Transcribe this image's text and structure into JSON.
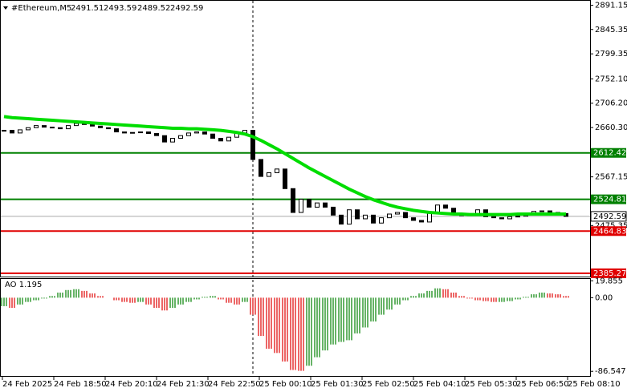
{
  "chart_data": [
    {
      "type": "candlestick",
      "title": "#Ethereum,M5",
      "quote": [
        2491.51,
        2493.59,
        2489.52,
        2492.59
      ],
      "series": [
        {
          "color": "#000000",
          "values": [
            2655,
            2650,
            2656,
            2660,
            2664,
            2661,
            2660,
            2658,
            2664,
            2668,
            2666,
            2663,
            2660,
            2658,
            2652,
            2650,
            2651,
            2652,
            2649,
            2645,
            2633,
            2640,
            2645,
            2650,
            2652,
            2648,
            2640,
            2635,
            2642,
            2650,
            2655,
            2600,
            2568,
            2575,
            2582,
            2545,
            2500,
            2525,
            2510,
            2518,
            2510,
            2495,
            2478,
            2505,
            2488,
            2495,
            2480,
            2490,
            2497,
            2500,
            2490,
            2485,
            2482,
            2500,
            2514,
            2508,
            2498,
            2494,
            2496,
            2505,
            2492,
            2490,
            2488,
            2492,
            2493,
            2496,
            2502,
            2503,
            2500,
            2498,
            2492.59
          ]
        },
        {
          "color": "#00dd00",
          "values": [
            2681,
            2679,
            2678,
            2677,
            2676,
            2675,
            2674,
            2673,
            2672,
            2671,
            2670,
            2669,
            2668,
            2667,
            2666,
            2665,
            2664,
            2663,
            2662,
            2661,
            2660,
            2659,
            2659,
            2658,
            2658,
            2657,
            2656,
            2655,
            2653,
            2651,
            2648,
            2643,
            2636,
            2628,
            2620,
            2611,
            2602,
            2593,
            2584,
            2576,
            2568,
            2560,
            2552,
            2544,
            2537,
            2530,
            2524,
            2519,
            2514,
            2510,
            2507,
            2504,
            2502,
            2500,
            2499,
            2498,
            2497,
            2497,
            2496,
            2496,
            2496,
            2496,
            2496,
            2496,
            2497,
            2497,
            2497,
            2497,
            2497,
            2497,
            2497
          ]
        }
      ],
      "levels": [
        {
          "value": 2612.42,
          "color": "#008000"
        },
        {
          "value": 2524.81,
          "color": "#008000"
        },
        {
          "value": 2464.83,
          "color": "#e00000"
        },
        {
          "value": 2385.27,
          "color": "#e00000"
        }
      ],
      "ylim": [
        2379,
        2901
      ],
      "yticks": [
        2891.15,
        2845.35,
        2799.35,
        {
          "value": 2752.1,
          "label": "2752.10"
        },
        {
          "value": 2706.2,
          "label": "2706.20"
        },
        {
          "value": 2660.3,
          "label": "2660.30"
        },
        2567.15,
        2475.35
      ],
      "time_labels": [
        "24 Feb 2025",
        "24 Feb 18:50",
        "24 Feb 20:10",
        "24 Feb 21:30",
        "24 Feb 22:50",
        "25 Feb 00:10",
        "25 Feb 01:30",
        "25 Feb 02:50",
        "25 Feb 04:10",
        "25 Feb 05:30",
        "25 Feb 06:50",
        "25 Feb 08:10"
      ]
    },
    {
      "type": "bar",
      "title": "AO 1.195",
      "up_color": "#008000",
      "down_color": "#e00000",
      "values": [
        -10,
        -12,
        -8,
        -5,
        -3,
        -1,
        2,
        6,
        9,
        10,
        8,
        5,
        2,
        0,
        -3,
        -5,
        -6,
        -5,
        -8,
        -12,
        -15,
        -12,
        -8,
        -5,
        -2,
        1,
        2,
        -2,
        -6,
        -8,
        -5,
        -20,
        -45,
        -60,
        -65,
        -75,
        -85,
        -86,
        -80,
        -70,
        -62,
        -55,
        -52,
        -50,
        -42,
        -35,
        -28,
        -20,
        -14,
        -8,
        -3,
        2,
        5,
        8,
        11,
        10,
        6,
        2,
        -1,
        -3,
        -4,
        -5,
        -5,
        -4,
        -2,
        1,
        4,
        6,
        5,
        4,
        2
      ],
      "ylim": [
        -92,
        22
      ],
      "yticks": [
        19.855,
        {
          "value": 0,
          "label": "0.00"
        },
        -86.547
      ]
    }
  ]
}
